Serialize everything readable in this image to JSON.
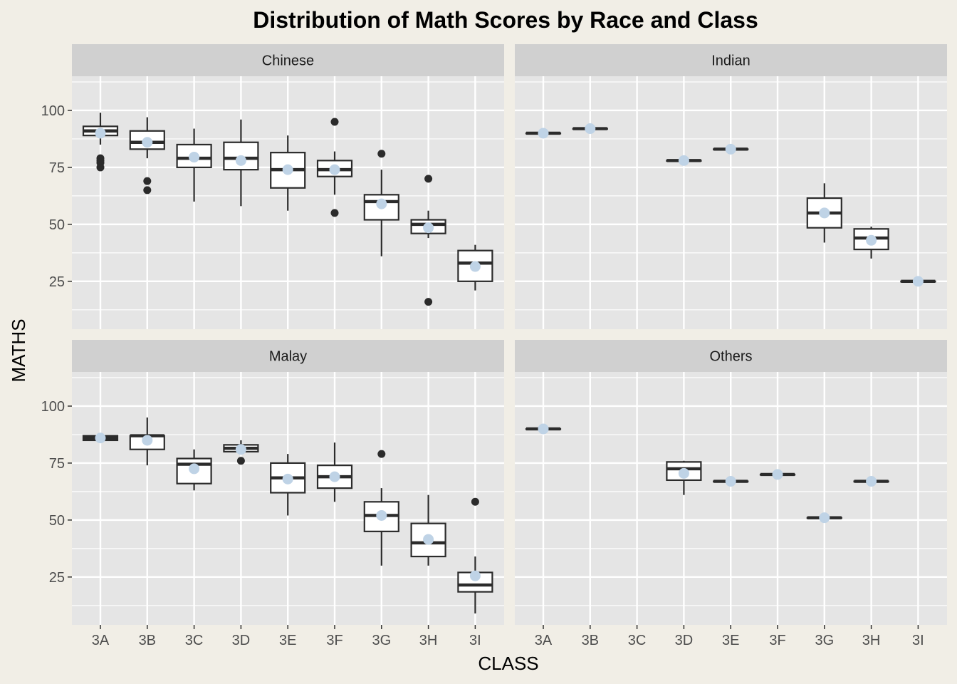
{
  "chart_data": {
    "type": "boxplot",
    "title": "Distribution of Math Scores by Race and Class",
    "xlabel": "CLASS",
    "ylabel": "MATHS",
    "categories": [
      "3A",
      "3B",
      "3C",
      "3D",
      "3E",
      "3F",
      "3G",
      "3H",
      "3I"
    ],
    "ylim": [
      4,
      115
    ],
    "yticks": [
      25,
      50,
      75,
      100
    ],
    "grid": true,
    "colors": {
      "panel_bg": "#E5E5E5",
      "strip_bg": "#D0D0D0",
      "grid": "#FFFFFF",
      "box_fill": "#FFFFFF",
      "box_line": "#2B2B2B",
      "mean_point": "#BFD3E6",
      "outlier": "#2B2B2B",
      "page_bg": "#F1EEE6"
    },
    "panels": [
      {
        "facet": "Chinese",
        "boxes": [
          {
            "class": "3A",
            "min": 85,
            "q1": 89,
            "median": 91,
            "q3": 93,
            "max": 99,
            "mean": 90,
            "outliers": [
              75,
              77,
              78,
              79
            ]
          },
          {
            "class": "3B",
            "min": 79,
            "q1": 83,
            "median": 86,
            "q3": 91,
            "max": 97,
            "mean": 86,
            "outliers": [
              65,
              69
            ]
          },
          {
            "class": "3C",
            "min": 60,
            "q1": 75,
            "median": 79,
            "q3": 85,
            "max": 92,
            "mean": 79.5,
            "outliers": []
          },
          {
            "class": "3D",
            "min": 58,
            "q1": 74,
            "median": 79,
            "q3": 86,
            "max": 96,
            "mean": 78,
            "outliers": []
          },
          {
            "class": "3E",
            "min": 56,
            "q1": 66,
            "median": 74,
            "q3": 81.5,
            "max": 89,
            "mean": 74,
            "outliers": []
          },
          {
            "class": "3F",
            "min": 63,
            "q1": 71,
            "median": 74,
            "q3": 78,
            "max": 82,
            "mean": 74,
            "outliers": [
              55,
              95
            ]
          },
          {
            "class": "3G",
            "min": 36,
            "q1": 52,
            "median": 60,
            "q3": 63,
            "max": 74,
            "mean": 59,
            "outliers": [
              81
            ]
          },
          {
            "class": "3H",
            "min": 44,
            "q1": 46,
            "median": 50,
            "q3": 52,
            "max": 56,
            "mean": 48.5,
            "outliers": [
              16,
              70
            ]
          },
          {
            "class": "3I",
            "min": 21,
            "q1": 25,
            "median": 33,
            "q3": 38.5,
            "max": 41,
            "mean": 31.5,
            "outliers": []
          }
        ]
      },
      {
        "facet": "Indian",
        "boxes": [
          {
            "class": "3A",
            "min": 90,
            "q1": 90,
            "median": 90,
            "q3": 90,
            "max": 90,
            "mean": 90,
            "outliers": []
          },
          {
            "class": "3B",
            "min": 92,
            "q1": 92,
            "median": 92,
            "q3": 92,
            "max": 92,
            "mean": 92,
            "outliers": []
          },
          {
            "class": "3D",
            "min": 78,
            "q1": 78,
            "median": 78,
            "q3": 78,
            "max": 78,
            "mean": 78,
            "outliers": []
          },
          {
            "class": "3E",
            "min": 83,
            "q1": 83,
            "median": 83,
            "q3": 83,
            "max": 83,
            "mean": 83,
            "outliers": []
          },
          {
            "class": "3G",
            "min": 42,
            "q1": 48.5,
            "median": 55,
            "q3": 61.5,
            "max": 68,
            "mean": 55,
            "outliers": []
          },
          {
            "class": "3H",
            "min": 35,
            "q1": 39,
            "median": 44,
            "q3": 48,
            "max": 49,
            "mean": 43,
            "outliers": []
          },
          {
            "class": "3I",
            "min": 25,
            "q1": 25,
            "median": 25,
            "q3": 25,
            "max": 25,
            "mean": 25,
            "outliers": []
          }
        ]
      },
      {
        "facet": "Malay",
        "boxes": [
          {
            "class": "3A",
            "min": 85,
            "q1": 85,
            "median": 86,
            "q3": 87,
            "max": 87,
            "mean": 86,
            "outliers": []
          },
          {
            "class": "3B",
            "min": 74,
            "q1": 81,
            "median": 87,
            "q3": 87,
            "max": 95,
            "mean": 85,
            "outliers": []
          },
          {
            "class": "3C",
            "min": 63,
            "q1": 66,
            "median": 74.5,
            "q3": 77,
            "max": 81,
            "mean": 72.5,
            "outliers": []
          },
          {
            "class": "3D",
            "min": 80,
            "q1": 80,
            "median": 81.5,
            "q3": 83,
            "max": 85,
            "mean": 81,
            "outliers": [
              76
            ]
          },
          {
            "class": "3E",
            "min": 52,
            "q1": 62,
            "median": 68.5,
            "q3": 75,
            "max": 79,
            "mean": 68,
            "outliers": []
          },
          {
            "class": "3F",
            "min": 58,
            "q1": 64,
            "median": 69,
            "q3": 74,
            "max": 84,
            "mean": 69,
            "outliers": []
          },
          {
            "class": "3G",
            "min": 30,
            "q1": 45,
            "median": 52,
            "q3": 58,
            "max": 64,
            "mean": 52,
            "outliers": [
              79
            ]
          },
          {
            "class": "3H",
            "min": 30,
            "q1": 34,
            "median": 40,
            "q3": 48.5,
            "max": 61,
            "mean": 41.5,
            "outliers": []
          },
          {
            "class": "3I",
            "min": 9,
            "q1": 18.5,
            "median": 21.5,
            "q3": 27,
            "max": 34,
            "mean": 25.5,
            "outliers": [
              58
            ]
          }
        ]
      },
      {
        "facet": "Others",
        "boxes": [
          {
            "class": "3A",
            "min": 90,
            "q1": 90,
            "median": 90,
            "q3": 90,
            "max": 90,
            "mean": 90,
            "outliers": []
          },
          {
            "class": "3D",
            "min": 61,
            "q1": 67.5,
            "median": 72.5,
            "q3": 75.5,
            "max": 76,
            "mean": 70.5,
            "outliers": []
          },
          {
            "class": "3E",
            "min": 67,
            "q1": 67,
            "median": 67,
            "q3": 67,
            "max": 67,
            "mean": 67,
            "outliers": []
          },
          {
            "class": "3F",
            "min": 70,
            "q1": 70,
            "median": 70,
            "q3": 70,
            "max": 70,
            "mean": 70,
            "outliers": []
          },
          {
            "class": "3G",
            "min": 51,
            "q1": 51,
            "median": 51,
            "q3": 51,
            "max": 51,
            "mean": 51,
            "outliers": []
          },
          {
            "class": "3H",
            "min": 67,
            "q1": 67,
            "median": 67,
            "q3": 67,
            "max": 67,
            "mean": 67,
            "outliers": []
          }
        ]
      }
    ]
  }
}
